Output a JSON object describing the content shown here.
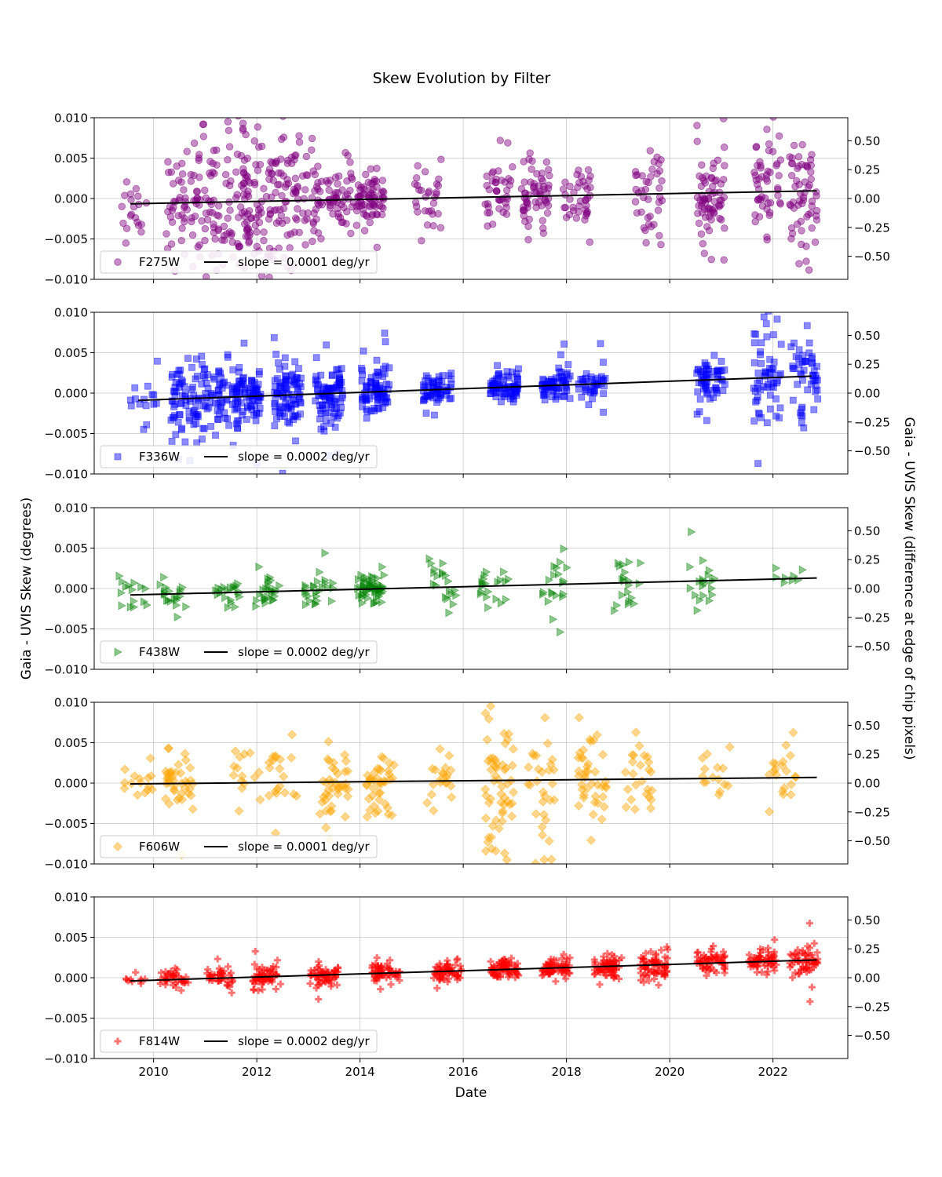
{
  "figure": {
    "title": "Skew Evolution by Filter",
    "xlabel": "Date",
    "ylabel_left": "Gaia - UVIS Skew (degrees)",
    "ylabel_right": "Gaia - UVIS Skew (difference at edge of chip pixels)"
  },
  "chart_data": [
    {
      "type": "scatter",
      "filter": "F275W",
      "color": "#800080",
      "marker": "circle",
      "legend": [
        "F275W",
        "slope = 0.0001 deg/yr"
      ],
      "legend_position": "lower-left",
      "grid": true,
      "xlim": [
        2008.85,
        2023.45
      ],
      "ylim": [
        -0.01,
        0.01
      ],
      "y2lim": [
        -0.7,
        0.7
      ],
      "xticks": [
        "2010",
        "2012",
        "2014",
        "2016",
        "2018",
        "2020",
        "2022"
      ],
      "yticks": [
        "0.010",
        "0.005",
        "0.000",
        "−0.005",
        "−0.010"
      ],
      "y2ticks": [
        "0.50",
        "0.25",
        "0.00",
        "−0.25",
        "−0.50"
      ],
      "fit": {
        "x": [
          2009.55,
          2022.85
        ],
        "y": [
          -0.00065,
          0.00095
        ]
      },
      "clusters": [
        {
          "x": 2009.6,
          "n": 20,
          "sd": 0.0022
        },
        {
          "x": 2010.5,
          "n": 40,
          "sd": 0.0035
        },
        {
          "x": 2011.0,
          "n": 60,
          "sd": 0.0038
        },
        {
          "x": 2011.6,
          "n": 60,
          "sd": 0.0045
        },
        {
          "x": 2012.0,
          "n": 60,
          "sd": 0.0045
        },
        {
          "x": 2012.5,
          "n": 60,
          "sd": 0.0038
        },
        {
          "x": 2013.0,
          "n": 50,
          "sd": 0.003
        },
        {
          "x": 2013.6,
          "n": 50,
          "sd": 0.0018
        },
        {
          "x": 2014.2,
          "n": 70,
          "sd": 0.0015
        },
        {
          "x": 2015.3,
          "n": 30,
          "sd": 0.0025
        },
        {
          "x": 2016.7,
          "n": 40,
          "sd": 0.0025
        },
        {
          "x": 2017.4,
          "n": 60,
          "sd": 0.0022
        },
        {
          "x": 2018.2,
          "n": 40,
          "sd": 0.002
        },
        {
          "x": 2019.6,
          "n": 40,
          "sd": 0.003
        },
        {
          "x": 2020.8,
          "n": 70,
          "sd": 0.003
        },
        {
          "x": 2021.9,
          "n": 50,
          "sd": 0.0045
        },
        {
          "x": 2022.6,
          "n": 60,
          "sd": 0.004
        }
      ]
    },
    {
      "type": "scatter",
      "filter": "F336W",
      "color": "#0000ff",
      "marker": "square",
      "legend": [
        "F336W",
        "slope = 0.0002 deg/yr"
      ],
      "legend_position": "lower-left",
      "grid": true,
      "xlim": [
        2008.85,
        2023.45
      ],
      "ylim": [
        -0.01,
        0.01
      ],
      "y2lim": [
        -0.7,
        0.7
      ],
      "xticks": [
        "2010",
        "2012",
        "2014",
        "2016",
        "2018",
        "2020",
        "2022"
      ],
      "yticks": [
        "0.010",
        "0.005",
        "0.000",
        "−0.005",
        "−0.010"
      ],
      "y2ticks": [
        "0.50",
        "0.25",
        "0.00",
        "−0.25",
        "−0.50"
      ],
      "fit": {
        "x": [
          2009.7,
          2022.75
        ],
        "y": [
          -0.0009,
          0.0021
        ]
      },
      "clusters": [
        {
          "x": 2009.8,
          "n": 15,
          "sd": 0.002
        },
        {
          "x": 2010.6,
          "n": 70,
          "sd": 0.0022
        },
        {
          "x": 2011.2,
          "n": 60,
          "sd": 0.0022
        },
        {
          "x": 2011.8,
          "n": 90,
          "sd": 0.0018
        },
        {
          "x": 2012.6,
          "n": 90,
          "sd": 0.0022
        },
        {
          "x": 2013.4,
          "n": 90,
          "sd": 0.0018
        },
        {
          "x": 2014.3,
          "n": 80,
          "sd": 0.0015
        },
        {
          "x": 2015.5,
          "n": 60,
          "sd": 0.001
        },
        {
          "x": 2016.8,
          "n": 80,
          "sd": 0.001
        },
        {
          "x": 2017.8,
          "n": 70,
          "sd": 0.001
        },
        {
          "x": 2018.5,
          "n": 40,
          "sd": 0.0012
        },
        {
          "x": 2020.8,
          "n": 60,
          "sd": 0.0012
        },
        {
          "x": 2021.9,
          "n": 60,
          "sd": 0.003
        },
        {
          "x": 2022.6,
          "n": 50,
          "sd": 0.0025
        }
      ]
    },
    {
      "type": "scatter",
      "filter": "F438W",
      "color": "#008000",
      "marker": "triangle-right",
      "legend": [
        "F438W",
        "slope = 0.0002 deg/yr"
      ],
      "legend_position": "lower-left",
      "grid": true,
      "xlim": [
        2008.85,
        2023.45
      ],
      "ylim": [
        -0.01,
        0.01
      ],
      "y2lim": [
        -0.7,
        0.7
      ],
      "xticks": [
        "2010",
        "2012",
        "2014",
        "2016",
        "2018",
        "2020",
        "2022"
      ],
      "yticks": [
        "0.010",
        "0.005",
        "0.000",
        "−0.005",
        "−0.010"
      ],
      "y2ticks": [
        "0.50",
        "0.25",
        "0.00",
        "−0.25",
        "−0.50"
      ],
      "fit": {
        "x": [
          2009.55,
          2022.85
        ],
        "y": [
          -0.0008,
          0.0013
        ]
      },
      "clusters": [
        {
          "x": 2009.6,
          "n": 15,
          "sd": 0.001
        },
        {
          "x": 2010.4,
          "n": 20,
          "sd": 0.001
        },
        {
          "x": 2011.4,
          "n": 20,
          "sd": 0.001
        },
        {
          "x": 2012.2,
          "n": 25,
          "sd": 0.0012
        },
        {
          "x": 2013.2,
          "n": 25,
          "sd": 0.0015
        },
        {
          "x": 2014.2,
          "n": 60,
          "sd": 0.0012
        },
        {
          "x": 2015.6,
          "n": 20,
          "sd": 0.0012
        },
        {
          "x": 2016.6,
          "n": 20,
          "sd": 0.001
        },
        {
          "x": 2017.8,
          "n": 20,
          "sd": 0.0025
        },
        {
          "x": 2019.2,
          "n": 20,
          "sd": 0.002
        },
        {
          "x": 2020.6,
          "n": 20,
          "sd": 0.0025
        },
        {
          "x": 2022.3,
          "n": 8,
          "sd": 0.001
        }
      ]
    },
    {
      "type": "scatter",
      "filter": "F606W",
      "color": "#ffa500",
      "marker": "diamond",
      "legend": [
        "F606W",
        "slope = 0.0001 deg/yr"
      ],
      "legend_position": "lower-left",
      "grid": true,
      "xlim": [
        2008.85,
        2023.45
      ],
      "ylim": [
        -0.01,
        0.01
      ],
      "y2lim": [
        -0.7,
        0.7
      ],
      "xticks": [
        "2010",
        "2012",
        "2014",
        "2016",
        "2018",
        "2020",
        "2022"
      ],
      "yticks": [
        "0.010",
        "0.005",
        "0.000",
        "−0.005",
        "−0.010"
      ],
      "y2ticks": [
        "0.50",
        "0.25",
        "0.00",
        "−0.25",
        "−0.50"
      ],
      "fit": {
        "x": [
          2009.55,
          2022.85
        ],
        "y": [
          -0.0001,
          0.0007
        ]
      },
      "clusters": [
        {
          "x": 2009.7,
          "n": 15,
          "sd": 0.0012
        },
        {
          "x": 2010.5,
          "n": 40,
          "sd": 0.0015
        },
        {
          "x": 2011.8,
          "n": 15,
          "sd": 0.002
        },
        {
          "x": 2012.5,
          "n": 20,
          "sd": 0.0025
        },
        {
          "x": 2013.5,
          "n": 40,
          "sd": 0.002
        },
        {
          "x": 2014.4,
          "n": 40,
          "sd": 0.002
        },
        {
          "x": 2015.5,
          "n": 20,
          "sd": 0.002
        },
        {
          "x": 2016.7,
          "n": 60,
          "sd": 0.0045
        },
        {
          "x": 2017.5,
          "n": 30,
          "sd": 0.004
        },
        {
          "x": 2018.5,
          "n": 40,
          "sd": 0.0025
        },
        {
          "x": 2019.4,
          "n": 25,
          "sd": 0.0025
        },
        {
          "x": 2020.9,
          "n": 15,
          "sd": 0.002
        },
        {
          "x": 2022.2,
          "n": 20,
          "sd": 0.003
        }
      ]
    },
    {
      "type": "scatter",
      "filter": "F814W",
      "color": "#ff0000",
      "marker": "plus",
      "legend": [
        "F814W",
        "slope = 0.0002 deg/yr"
      ],
      "legend_position": "lower-left",
      "grid": true,
      "xlim": [
        2008.85,
        2023.45
      ],
      "ylim": [
        -0.01,
        0.01
      ],
      "y2lim": [
        -0.7,
        0.7
      ],
      "xticks": [
        "2010",
        "2012",
        "2014",
        "2016",
        "2018",
        "2020",
        "2022"
      ],
      "yticks": [
        "0.010",
        "0.005",
        "0.000",
        "−0.005",
        "−0.010"
      ],
      "y2ticks": [
        "0.25",
        "0.00",
        "−0.25",
        "−0.50"
      ],
      "y2ticks_top": "0.50",
      "fit": {
        "x": [
          2009.55,
          2022.85
        ],
        "y": [
          -0.0004,
          0.0022
        ]
      },
      "clusters": [
        {
          "x": 2009.7,
          "n": 10,
          "sd": 0.0005
        },
        {
          "x": 2010.4,
          "n": 40,
          "sd": 0.0006
        },
        {
          "x": 2011.3,
          "n": 40,
          "sd": 0.0006
        },
        {
          "x": 2012.2,
          "n": 60,
          "sd": 0.0007
        },
        {
          "x": 2013.3,
          "n": 60,
          "sd": 0.0007
        },
        {
          "x": 2014.5,
          "n": 60,
          "sd": 0.0006
        },
        {
          "x": 2015.7,
          "n": 60,
          "sd": 0.0006
        },
        {
          "x": 2016.8,
          "n": 70,
          "sd": 0.0006
        },
        {
          "x": 2017.8,
          "n": 70,
          "sd": 0.0006
        },
        {
          "x": 2018.8,
          "n": 70,
          "sd": 0.0007
        },
        {
          "x": 2019.7,
          "n": 70,
          "sd": 0.0008
        },
        {
          "x": 2020.8,
          "n": 60,
          "sd": 0.0007
        },
        {
          "x": 2021.8,
          "n": 60,
          "sd": 0.0007
        },
        {
          "x": 2022.6,
          "n": 60,
          "sd": 0.0008
        }
      ]
    }
  ]
}
